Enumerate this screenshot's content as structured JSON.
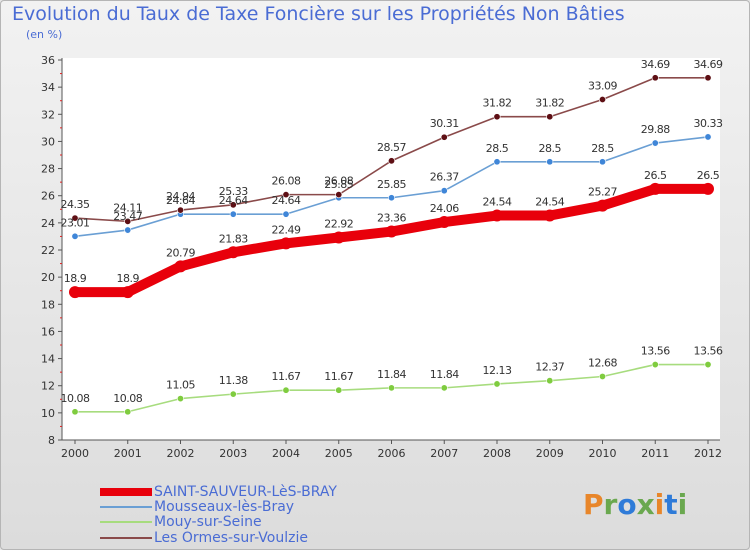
{
  "header": {
    "title": "Evolution du Taux de Taxe Foncière sur les Propriétés Non Bâties",
    "unit": "(en %)"
  },
  "logo": {
    "text": "Proxiti",
    "colors": [
      "#e8862a",
      "#6aa84f",
      "#2f7bd8",
      "#6aa84f",
      "#e8862a",
      "#2f7bd8",
      "#6aa84f"
    ]
  },
  "chart_data": {
    "type": "line",
    "title": "Evolution du Taux de Taxe Foncière sur les Propriétés Non Bâties",
    "ylabel": "(en %)",
    "xlabel": "",
    "x": [
      "2000",
      "2001",
      "2002",
      "2003",
      "2004",
      "2005",
      "2006",
      "2007",
      "2008",
      "2009",
      "2010",
      "2011",
      "2012"
    ],
    "ylim": [
      8,
      36
    ],
    "yticks": [
      8,
      10,
      12,
      14,
      16,
      18,
      20,
      22,
      24,
      26,
      28,
      30,
      32,
      34,
      36
    ],
    "grid": false,
    "legend_position": "bottom-left",
    "series": [
      {
        "name": "SAINT-SAUVEUR-LèS-BRAY",
        "color": "#e8000b",
        "marker_color": "#e8000b",
        "width": "thick",
        "values": [
          18.9,
          18.9,
          20.79,
          21.83,
          22.49,
          22.92,
          23.36,
          24.06,
          24.54,
          24.54,
          25.27,
          26.5,
          26.5
        ],
        "labels": [
          "18.9",
          "18.9",
          "20.79",
          "21.83",
          "22.49",
          "22.92",
          "23.36",
          "24.06",
          "24.54",
          "24.54",
          "25.27",
          "26.5",
          "26.5"
        ]
      },
      {
        "name": "Mousseaux-lès-Bray",
        "color": "#6a9fd4",
        "marker_color": "#3f86d8",
        "width": "thin",
        "values": [
          23.01,
          23.47,
          24.64,
          24.64,
          24.64,
          25.85,
          25.85,
          26.37,
          28.5,
          28.5,
          28.5,
          29.88,
          30.33
        ],
        "labels": [
          "23.01",
          "23.47",
          "24.64",
          "24.64",
          "24.64",
          "25.85",
          "25.85",
          "26.37",
          "28.5",
          "28.5",
          "28.5",
          "29.88",
          "30.33"
        ]
      },
      {
        "name": "Mouy-sur-Seine",
        "color": "#a7dc7e",
        "marker_color": "#7fcc3f",
        "width": "thin",
        "values": [
          10.08,
          10.08,
          11.05,
          11.38,
          11.67,
          11.67,
          11.84,
          11.84,
          12.13,
          12.37,
          12.68,
          13.56,
          13.56
        ],
        "labels": [
          "10.08",
          "10.08",
          "11.05",
          "11.38",
          "11.67",
          "11.67",
          "11.84",
          "11.84",
          "12.13",
          "12.37",
          "12.68",
          "13.56",
          "13.56"
        ]
      },
      {
        "name": "Les Ormes-sur-Voulzie",
        "color": "#8a4a4a",
        "marker_color": "#5e0f14",
        "width": "thin",
        "values": [
          24.35,
          24.11,
          24.94,
          25.33,
          26.08,
          26.08,
          28.57,
          30.31,
          31.82,
          31.82,
          33.09,
          34.69,
          34.69
        ],
        "labels": [
          "24.35",
          "24.11",
          "24.94",
          "25.33",
          "26.08",
          "26.08",
          "28.57",
          "30.31",
          "31.82",
          "31.82",
          "33.09",
          "34.69",
          "34.69"
        ]
      }
    ]
  }
}
